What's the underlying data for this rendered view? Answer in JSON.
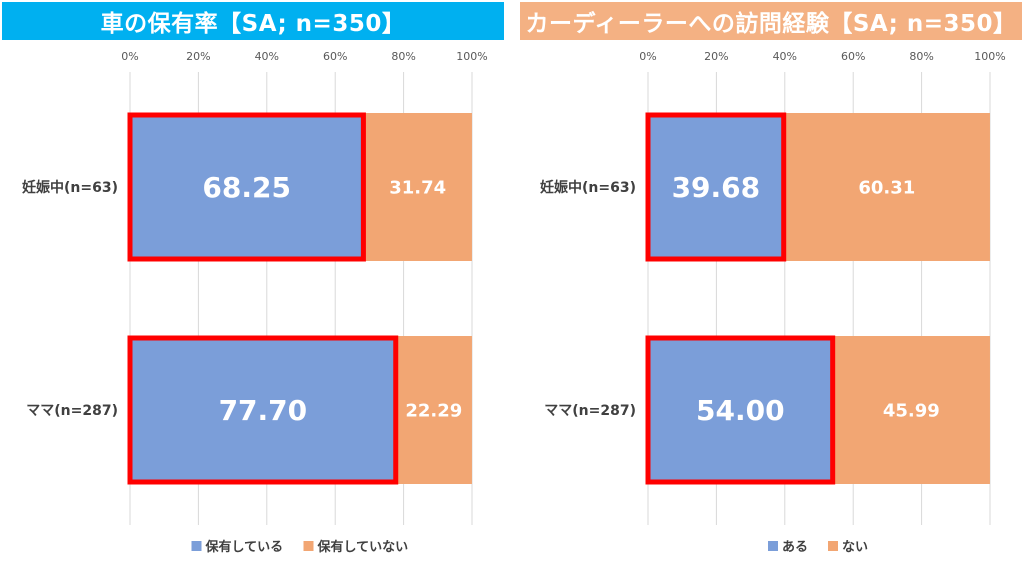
{
  "colors": {
    "series1": "#7B9ED9",
    "series2": "#F2A673",
    "highlight": "#FF0000",
    "grid": "#D9D9D9"
  },
  "chart_data": [
    {
      "type": "bar",
      "orientation": "horizontal",
      "stacked": true,
      "title": "車の保有率【SA; n=350】",
      "title_bg": "#00B0F0",
      "categories": [
        "妊娠中(n=63)",
        "ママ(n=287)"
      ],
      "series": [
        {
          "name": "保有している",
          "values": [
            68.25,
            77.7
          ],
          "labels": [
            "68.25",
            "77.70"
          ]
        },
        {
          "name": "保有していない",
          "values": [
            31.74,
            22.29
          ],
          "labels": [
            "31.74",
            "22.29"
          ]
        }
      ],
      "xlim": [
        0,
        100
      ],
      "x_ticks": [
        "0%",
        "20%",
        "40%",
        "60%",
        "80%",
        "100%"
      ],
      "grid": true,
      "legend_position": "bottom",
      "highlighted_series": "保有している"
    },
    {
      "type": "bar",
      "orientation": "horizontal",
      "stacked": true,
      "title": "カーディーラーへの訪問経験【SA; n=350】",
      "title_bg": "#F4B183",
      "categories": [
        "妊娠中(n=63)",
        "ママ(n=287)"
      ],
      "series": [
        {
          "name": "ある",
          "values": [
            39.68,
            54.0
          ],
          "labels": [
            "39.68",
            "54.00"
          ]
        },
        {
          "name": "ない",
          "values": [
            60.31,
            45.99
          ],
          "labels": [
            "60.31",
            "45.99"
          ]
        }
      ],
      "xlim": [
        0,
        100
      ],
      "x_ticks": [
        "0%",
        "20%",
        "40%",
        "60%",
        "80%",
        "100%"
      ],
      "grid": true,
      "legend_position": "bottom",
      "highlighted_series": "ある"
    }
  ]
}
